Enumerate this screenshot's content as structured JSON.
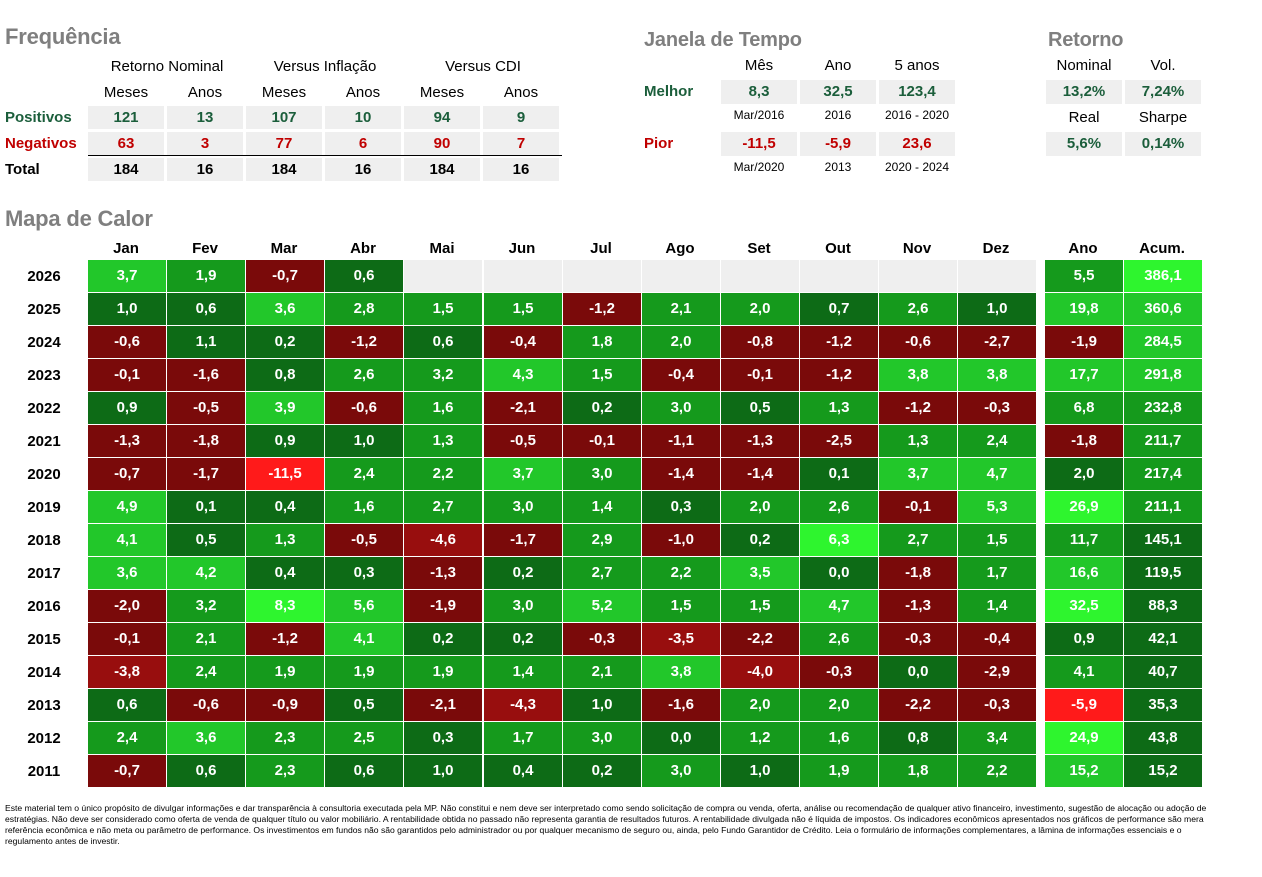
{
  "frequencia": {
    "title": "Frequência",
    "groups": [
      "Retorno Nominal",
      "Versus Inflação",
      "Versus CDI"
    ],
    "sub_headers": [
      "Meses",
      "Anos",
      "Meses",
      "Anos",
      "Meses",
      "Anos"
    ],
    "rows": [
      {
        "label": "Positivos",
        "values": [
          "121",
          "13",
          "107",
          "10",
          "94",
          "9"
        ]
      },
      {
        "label": "Negativos",
        "values": [
          "63",
          "3",
          "77",
          "6",
          "90",
          "7"
        ]
      },
      {
        "label": "Total",
        "values": [
          "184",
          "16",
          "184",
          "16",
          "184",
          "16"
        ]
      }
    ],
    "colors": {
      "positive": "#1b5e3b",
      "negative": "#c00000",
      "total": "#000000"
    }
  },
  "janela": {
    "title": "Janela de Tempo",
    "headers": [
      "Mês",
      "Ano",
      "5 anos"
    ],
    "rows": [
      {
        "label": "Melhor",
        "values": [
          "8,3",
          "32,5",
          "123,4"
        ],
        "notes": [
          "Mar/2016",
          "2016",
          "2016 - 2020"
        ]
      },
      {
        "label": "Pior",
        "values": [
          "-11,5",
          "-5,9",
          "23,6"
        ],
        "notes": [
          "Mar/2020",
          "2013",
          "2020 - 2024"
        ]
      }
    ],
    "colors": {
      "best": "#1b5e3b",
      "worst": "#c00000"
    }
  },
  "retorno": {
    "title": "Retorno",
    "headers_top": [
      "Nominal",
      "Vol."
    ],
    "values_top": [
      "13,2%",
      "7,24%"
    ],
    "headers_bottom": [
      "Real",
      "Sharpe"
    ],
    "values_bottom": [
      "5,6%",
      "0,14%"
    ]
  },
  "mapa": {
    "title": "Mapa de Calor",
    "months": [
      "Jan",
      "Fev",
      "Mar",
      "Abr",
      "Mai",
      "Jun",
      "Jul",
      "Ago",
      "Set",
      "Out",
      "Nov",
      "Dez"
    ],
    "year_header": "Ano",
    "accum_header": "Acum.",
    "rows": [
      {
        "year": "2026",
        "months": [
          "3,7",
          "1,9",
          "-0,7",
          "0,6",
          "",
          "",
          "",
          "",
          "",
          "",
          "",
          ""
        ],
        "ano": "5,5",
        "acum": "386,1"
      },
      {
        "year": "2025",
        "months": [
          "1,0",
          "0,6",
          "3,6",
          "2,8",
          "1,5",
          "1,5",
          "-1,2",
          "2,1",
          "2,0",
          "0,7",
          "2,6",
          "1,0"
        ],
        "ano": "19,8",
        "acum": "360,6"
      },
      {
        "year": "2024",
        "months": [
          "-0,6",
          "1,1",
          "0,2",
          "-1,2",
          "0,6",
          "-0,4",
          "1,8",
          "2,0",
          "-0,8",
          "-1,2",
          "-0,6",
          "-2,7"
        ],
        "ano": "-1,9",
        "acum": "284,5"
      },
      {
        "year": "2023",
        "months": [
          "-0,1",
          "-1,6",
          "0,8",
          "2,6",
          "3,2",
          "4,3",
          "1,5",
          "-0,4",
          "-0,1",
          "-1,2",
          "3,8",
          "3,8"
        ],
        "ano": "17,7",
        "acum": "291,8"
      },
      {
        "year": "2022",
        "months": [
          "0,9",
          "-0,5",
          "3,9",
          "-0,6",
          "1,6",
          "-2,1",
          "0,2",
          "3,0",
          "0,5",
          "1,3",
          "-1,2",
          "-0,3"
        ],
        "ano": "6,8",
        "acum": "232,8"
      },
      {
        "year": "2021",
        "months": [
          "-1,3",
          "-1,8",
          "0,9",
          "1,0",
          "1,3",
          "-0,5",
          "-0,1",
          "-1,1",
          "-1,3",
          "-2,5",
          "1,3",
          "2,4"
        ],
        "ano": "-1,8",
        "acum": "211,7"
      },
      {
        "year": "2020",
        "months": [
          "-0,7",
          "-1,7",
          "-11,5",
          "2,4",
          "2,2",
          "3,7",
          "3,0",
          "-1,4",
          "-1,4",
          "0,1",
          "3,7",
          "4,7"
        ],
        "ano": "2,0",
        "acum": "217,4"
      },
      {
        "year": "2019",
        "months": [
          "4,9",
          "0,1",
          "0,4",
          "1,6",
          "2,7",
          "3,0",
          "1,4",
          "0,3",
          "2,0",
          "2,6",
          "-0,1",
          "5,3"
        ],
        "ano": "26,9",
        "acum": "211,1"
      },
      {
        "year": "2018",
        "months": [
          "4,1",
          "0,5",
          "1,3",
          "-0,5",
          "-4,6",
          "-1,7",
          "2,9",
          "-1,0",
          "0,2",
          "6,3",
          "2,7",
          "1,5"
        ],
        "ano": "11,7",
        "acum": "145,1"
      },
      {
        "year": "2017",
        "months": [
          "3,6",
          "4,2",
          "0,4",
          "0,3",
          "-1,3",
          "0,2",
          "2,7",
          "2,2",
          "3,5",
          "0,0",
          "-1,8",
          "1,7"
        ],
        "ano": "16,6",
        "acum": "119,5"
      },
      {
        "year": "2016",
        "months": [
          "-2,0",
          "3,2",
          "8,3",
          "5,6",
          "-1,9",
          "3,0",
          "5,2",
          "1,5",
          "1,5",
          "4,7",
          "-1,3",
          "1,4"
        ],
        "ano": "32,5",
        "acum": "88,3"
      },
      {
        "year": "2015",
        "months": [
          "-0,1",
          "2,1",
          "-1,2",
          "4,1",
          "0,2",
          "0,2",
          "-0,3",
          "-3,5",
          "-2,2",
          "2,6",
          "-0,3",
          "-0,4"
        ],
        "ano": "0,9",
        "acum": "42,1"
      },
      {
        "year": "2014",
        "months": [
          "-3,8",
          "2,4",
          "1,9",
          "1,9",
          "1,9",
          "1,4",
          "2,1",
          "3,8",
          "-4,0",
          "-0,3",
          "0,0",
          "-2,9"
        ],
        "ano": "4,1",
        "acum": "40,7"
      },
      {
        "year": "2013",
        "months": [
          "0,6",
          "-0,6",
          "-0,9",
          "0,5",
          "-2,1",
          "-4,3",
          "1,0",
          "-1,6",
          "2,0",
          "2,0",
          "-2,2",
          "-0,3"
        ],
        "ano": "-5,9",
        "acum": "35,3"
      },
      {
        "year": "2012",
        "months": [
          "2,4",
          "3,6",
          "2,3",
          "2,5",
          "0,3",
          "1,7",
          "3,0",
          "0,0",
          "1,2",
          "1,6",
          "0,8",
          "3,4"
        ],
        "ano": "24,9",
        "acum": "43,8"
      },
      {
        "year": "2011",
        "months": [
          "-0,7",
          "0,6",
          "2,3",
          "0,6",
          "1,0",
          "0,4",
          "0,2",
          "3,0",
          "1,0",
          "1,9",
          "1,8",
          "2,2"
        ],
        "ano": "15,2",
        "acum": "15,2"
      }
    ],
    "colors": {
      "pos_low": "#0d6b16",
      "pos_mid": "#159a1c",
      "pos_high": "#22c72a",
      "pos_max": "#2ef52e",
      "neg_low": "#7a0a0a",
      "neg_mid": "#980e0e",
      "neg_max": "#ff1a1a",
      "empty": "#efefef"
    }
  },
  "disclaimer": "Este material tem o único propósito de divulgar informações e dar transparência à consultoria executada pela MP. Não constitui e nem deve ser interpretado como sendo solicitação de compra ou venda, oferta, análise ou recomendação de qualquer ativo financeiro, investimento, sugestão de alocação ou adoção de estratégias. Não deve ser considerado como oferta de venda de qualquer título ou valor mobiliário. A rentabilidade obtida no passado não representa garantia de resultados futuros. A rentabilidade divulgada não é líquida de impostos. Os indicadores econômicos apresentados nos gráficos de performance são mera referência econômica e não meta ou parâmetro de performance. Os investimentos em fundos não são garantidos pelo administrador ou por qualquer mecanismo de seguro ou, ainda, pelo Fundo Garantidor de Crédito. Leia o formulário de informações complementares, a lâmina de informações essenciais e o regulamento antes de investir."
}
